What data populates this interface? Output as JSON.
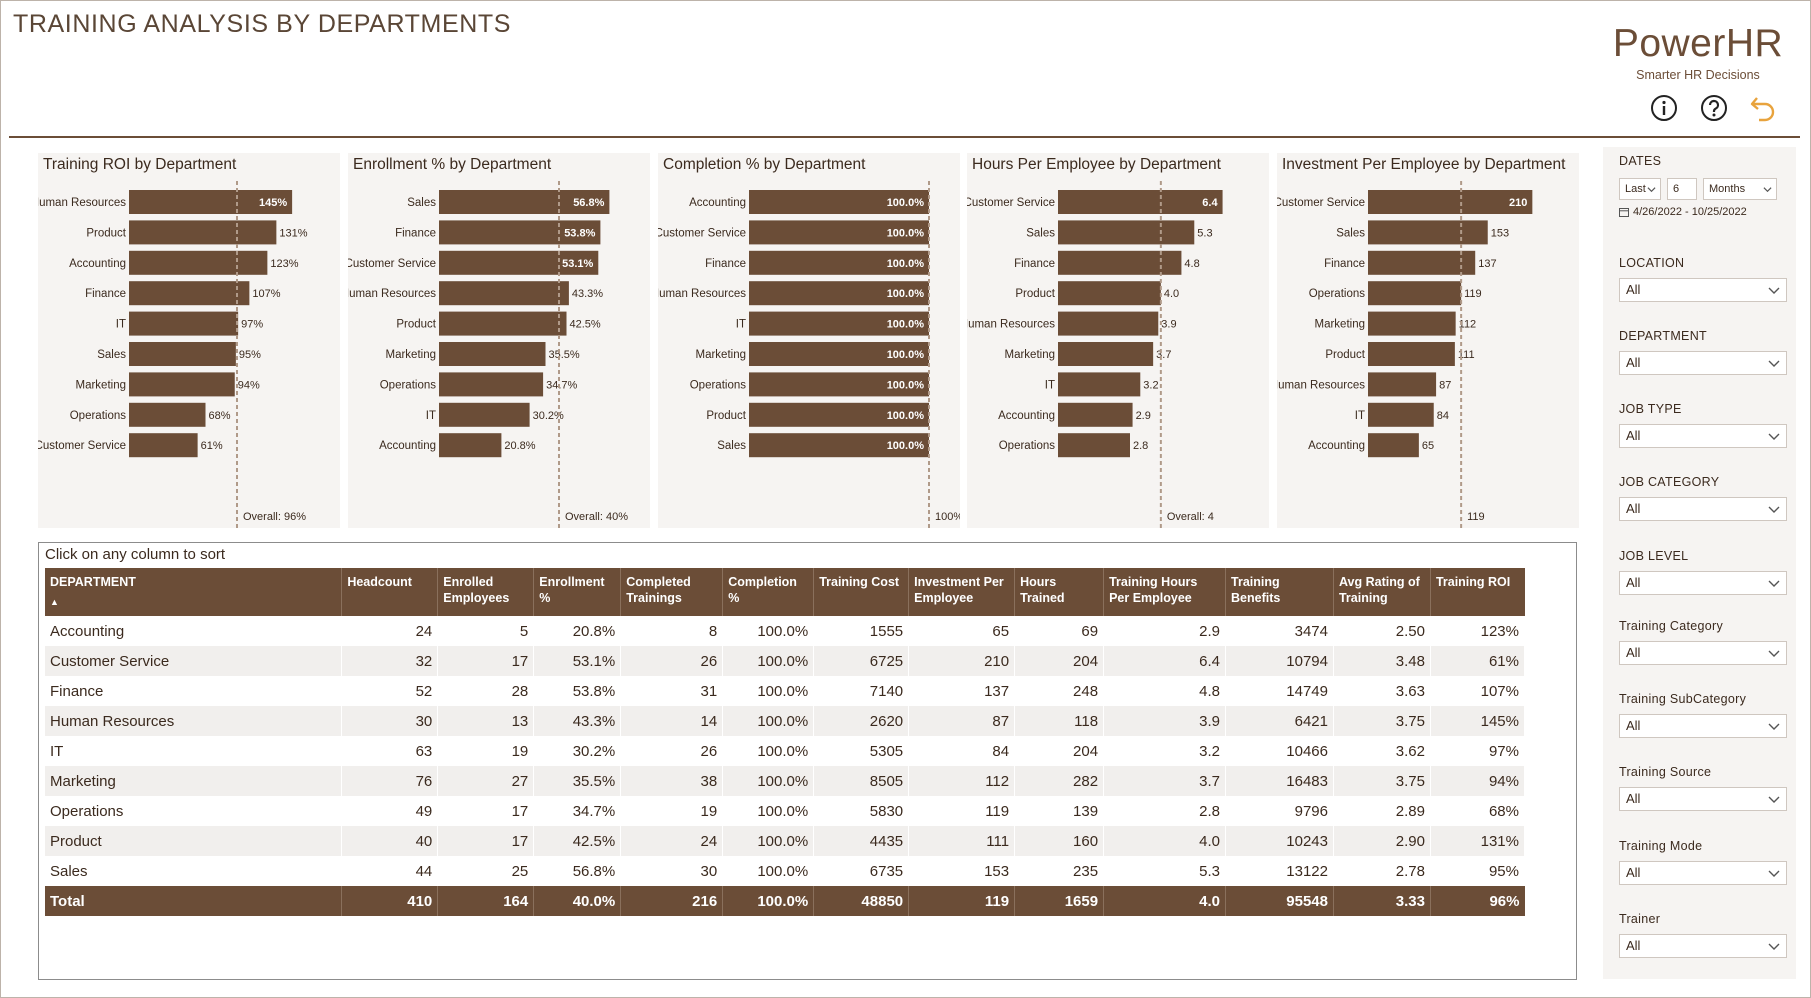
{
  "header": {
    "title": "TRAINING ANALYSIS BY DEPARTMENTS",
    "brand": "PowerHR",
    "tagline": "Smarter HR Decisions",
    "icons": [
      "info-icon",
      "help-icon",
      "back-icon"
    ]
  },
  "colors": {
    "bar": "#6b4d37",
    "panel": "#f6f4f2",
    "accent": "#e8a33d",
    "reference_line": "#b09a89"
  },
  "charts": [
    {
      "title": "Training ROI by Department",
      "categories": [
        "Human Resources",
        "Product",
        "Accounting",
        "Finance",
        "IT",
        "Sales",
        "Marketing",
        "Operations",
        "Customer Service"
      ],
      "values": [
        145,
        131,
        123,
        107,
        97,
        95,
        94,
        68,
        61
      ],
      "labels": [
        "145%",
        "131%",
        "123%",
        "107%",
        "97%",
        "95%",
        "94%",
        "68%",
        "61%"
      ],
      "max": 160,
      "reference": 96,
      "reference_label": "Overall: 96%"
    },
    {
      "title": "Enrollment % by Department",
      "categories": [
        "Sales",
        "Finance",
        "Customer Service",
        "Human Resources",
        "Product",
        "Marketing",
        "Operations",
        "IT",
        "Accounting"
      ],
      "values": [
        56.8,
        53.8,
        53.1,
        43.3,
        42.5,
        35.5,
        34.7,
        30.2,
        20.8
      ],
      "labels": [
        "56.8%",
        "53.8%",
        "53.1%",
        "43.3%",
        "42.5%",
        "35.5%",
        "34.7%",
        "30.2%",
        "20.8%"
      ],
      "max": 60,
      "reference": 40,
      "reference_label": "Overall: 40%"
    },
    {
      "title": "Completion % by Department",
      "categories": [
        "Accounting",
        "Customer Service",
        "Finance",
        "Human Resources",
        "IT",
        "Marketing",
        "Operations",
        "Product",
        "Sales"
      ],
      "values": [
        100,
        100,
        100,
        100,
        100,
        100,
        100,
        100,
        100
      ],
      "labels": [
        "100.0%",
        "100.0%",
        "100.0%",
        "100.0%",
        "100.0%",
        "100.0%",
        "100.0%",
        "100.0%",
        "100.0%"
      ],
      "max": 100,
      "reference": 100,
      "reference_label": "100%"
    },
    {
      "title": "Hours Per Employee by Department",
      "categories": [
        "Customer Service",
        "Sales",
        "Finance",
        "Product",
        "Human Resources",
        "Marketing",
        "IT",
        "Accounting",
        "Operations"
      ],
      "values": [
        6.4,
        5.3,
        4.8,
        4.0,
        3.9,
        3.7,
        3.2,
        2.9,
        2.8
      ],
      "labels": [
        "6.4",
        "5.3",
        "4.8",
        "4.0",
        "3.9",
        "3.7",
        "3.2",
        "2.9",
        "2.8"
      ],
      "max": 7,
      "reference": 4,
      "reference_label": "Overall: 4"
    },
    {
      "title": "Investment Per Employee by Department",
      "categories": [
        "Customer Service",
        "Sales",
        "Finance",
        "Operations",
        "Marketing",
        "Product",
        "Human Resources",
        "IT",
        "Accounting"
      ],
      "values": [
        210,
        153,
        137,
        119,
        112,
        111,
        87,
        84,
        65
      ],
      "labels": [
        "210",
        "153",
        "137",
        "119",
        "112",
        "111",
        "87",
        "84",
        "65"
      ],
      "max": 230,
      "reference": 119,
      "reference_label": "119"
    }
  ],
  "table": {
    "hint": "Click on any column to sort",
    "sort_indicator": "▲",
    "columns": [
      "DEPARTMENT",
      "Headcount",
      "Enrolled Employees",
      "Enrollment %",
      "Completed Trainings",
      "Completion %",
      "Training Cost",
      "Investment Per Employee",
      "Hours Trained",
      "Training Hours Per Employee",
      "Training Benefits",
      "Avg Rating of Training",
      "Training ROI"
    ],
    "rows": [
      [
        "Accounting",
        "24",
        "5",
        "20.8%",
        "8",
        "100.0%",
        "1555",
        "65",
        "69",
        "2.9",
        "3474",
        "2.50",
        "123%"
      ],
      [
        "Customer Service",
        "32",
        "17",
        "53.1%",
        "26",
        "100.0%",
        "6725",
        "210",
        "204",
        "6.4",
        "10794",
        "3.48",
        "61%"
      ],
      [
        "Finance",
        "52",
        "28",
        "53.8%",
        "31",
        "100.0%",
        "7140",
        "137",
        "248",
        "4.8",
        "14749",
        "3.63",
        "107%"
      ],
      [
        "Human Resources",
        "30",
        "13",
        "43.3%",
        "14",
        "100.0%",
        "2620",
        "87",
        "118",
        "3.9",
        "6421",
        "3.75",
        "145%"
      ],
      [
        "IT",
        "63",
        "19",
        "30.2%",
        "26",
        "100.0%",
        "5305",
        "84",
        "204",
        "3.2",
        "10466",
        "3.62",
        "97%"
      ],
      [
        "Marketing",
        "76",
        "27",
        "35.5%",
        "38",
        "100.0%",
        "8505",
        "112",
        "282",
        "3.7",
        "16483",
        "3.75",
        "94%"
      ],
      [
        "Operations",
        "49",
        "17",
        "34.7%",
        "19",
        "100.0%",
        "5830",
        "119",
        "139",
        "2.8",
        "9796",
        "2.89",
        "68%"
      ],
      [
        "Product",
        "40",
        "17",
        "42.5%",
        "24",
        "100.0%",
        "4435",
        "111",
        "160",
        "4.0",
        "10243",
        "2.90",
        "131%"
      ],
      [
        "Sales",
        "44",
        "25",
        "56.8%",
        "30",
        "100.0%",
        "6735",
        "153",
        "235",
        "5.3",
        "13122",
        "2.78",
        "95%"
      ]
    ],
    "total": [
      "Total",
      "410",
      "164",
      "40.0%",
      "216",
      "100.0%",
      "48850",
      "119",
      "1659",
      "4.0",
      "95548",
      "3.33",
      "96%"
    ]
  },
  "filters": {
    "dates": {
      "label": "DATES",
      "relative": "Last",
      "count": "6",
      "unit": "Months",
      "range": "4/26/2022 - 10/25/2022"
    },
    "location": {
      "label": "LOCATION",
      "value": "All"
    },
    "department": {
      "label": "DEPARTMENT",
      "value": "All"
    },
    "job_type": {
      "label": "JOB TYPE",
      "value": "All"
    },
    "job_category": {
      "label": "JOB CATEGORY",
      "value": "All"
    },
    "job_level": {
      "label": "JOB LEVEL",
      "value": "All"
    },
    "training_category": {
      "label": "Training Category",
      "value": "All"
    },
    "training_subcategory": {
      "label": "Training SubCategory",
      "value": "All"
    },
    "training_source": {
      "label": "Training Source",
      "value": "All"
    },
    "training_mode": {
      "label": "Training Mode",
      "value": "All"
    },
    "trainer": {
      "label": "Trainer",
      "value": "All"
    }
  }
}
